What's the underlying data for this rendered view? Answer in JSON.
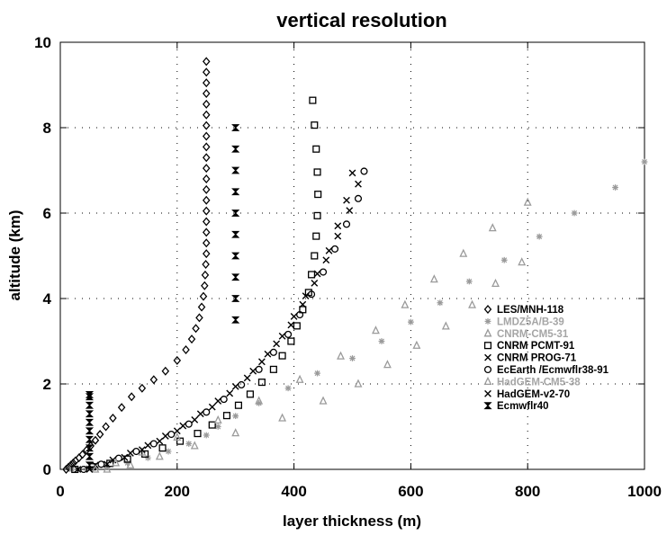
{
  "chart_data": {
    "type": "scatter",
    "title": "vertical resolution",
    "xlabel": "layer thickness (m)",
    "ylabel": "altitude (km)",
    "xlim": [
      0,
      1000
    ],
    "ylim": [
      0,
      10
    ],
    "x_ticks": [
      "0",
      "200",
      "400",
      "600",
      "800",
      "1000"
    ],
    "y_ticks": [
      "0",
      "2",
      "4",
      "6",
      "8",
      "10"
    ],
    "legend_position": "center-right",
    "series": [
      {
        "name": "LES/MNH-118",
        "marker": "diamond",
        "color": "#000000",
        "x": [
          10,
          14,
          18,
          22,
          26,
          32,
          38,
          45,
          52,
          60,
          68,
          78,
          90,
          105,
          122,
          140,
          160,
          180,
          200,
          215,
          225,
          232,
          238,
          242,
          245,
          247,
          248,
          249,
          250,
          250,
          250,
          250,
          250,
          250,
          250,
          250,
          250,
          250,
          250,
          250,
          250,
          250,
          250,
          250,
          250,
          250,
          250
        ],
        "y": [
          0.0,
          0.05,
          0.1,
          0.15,
          0.2,
          0.27,
          0.35,
          0.45,
          0.55,
          0.68,
          0.82,
          1.0,
          1.2,
          1.45,
          1.7,
          1.9,
          2.1,
          2.3,
          2.55,
          2.8,
          3.05,
          3.3,
          3.55,
          3.8,
          4.05,
          4.3,
          4.55,
          4.8,
          5.05,
          5.3,
          5.55,
          5.8,
          6.05,
          6.3,
          6.55,
          6.8,
          7.05,
          7.3,
          7.55,
          7.8,
          8.05,
          8.3,
          8.55,
          8.8,
          9.05,
          9.3,
          9.55
        ]
      },
      {
        "name": "LMDZ5A/B-39",
        "marker": "asterisk",
        "color": "#9a9a9a",
        "x": [
          20,
          45,
          80,
          115,
          150,
          185,
          220,
          250,
          270,
          300,
          340,
          390,
          440,
          500,
          550,
          600,
          650,
          700,
          760,
          820,
          880,
          950,
          1000
        ],
        "y": [
          0.0,
          0.02,
          0.07,
          0.15,
          0.27,
          0.42,
          0.6,
          0.8,
          1.0,
          1.25,
          1.55,
          1.9,
          2.25,
          2.6,
          3.0,
          3.45,
          3.9,
          4.4,
          4.9,
          5.45,
          6.0,
          6.6,
          7.2
        ]
      },
      {
        "name": "CNRM-CM5-31",
        "marker": "triangle",
        "color": "#9a9a9a",
        "x": [
          80,
          120,
          170,
          230,
          300,
          380,
          450,
          510,
          560,
          610,
          660,
          705,
          745,
          790
        ],
        "y": [
          0.0,
          0.1,
          0.3,
          0.55,
          0.85,
          1.2,
          1.6,
          2.0,
          2.45,
          2.9,
          3.35,
          3.85,
          4.35,
          4.85
        ]
      },
      {
        "name": "CNRM PCMT-91",
        "marker": "square",
        "color": "#000000",
        "x": [
          25,
          55,
          85,
          115,
          145,
          175,
          205,
          235,
          260,
          285,
          305,
          325,
          345,
          365,
          380,
          395,
          405,
          415,
          425,
          430,
          435,
          438,
          440,
          441,
          440,
          438,
          435,
          432
        ],
        "y": [
          0.0,
          0.06,
          0.14,
          0.24,
          0.36,
          0.5,
          0.66,
          0.84,
          1.04,
          1.26,
          1.5,
          1.76,
          2.04,
          2.34,
          2.66,
          3.0,
          3.36,
          3.74,
          4.14,
          4.56,
          5.0,
          5.46,
          5.94,
          6.44,
          6.96,
          7.5,
          8.06,
          8.64
        ]
      },
      {
        "name": "CNRM PROG-71",
        "marker": "x",
        "color": "#000000",
        "x": [
          30,
          60,
          90,
          120,
          150,
          180,
          210,
          240,
          270,
          300,
          330,
          355,
          380,
          400,
          420,
          440,
          460,
          475,
          490,
          500
        ],
        "y": [
          0.0,
          0.1,
          0.22,
          0.38,
          0.56,
          0.78,
          1.02,
          1.3,
          1.6,
          1.94,
          2.3,
          2.7,
          3.12,
          3.58,
          4.06,
          4.58,
          5.12,
          5.7,
          6.3,
          6.94
        ]
      },
      {
        "name": "EcEarth /Ecmwflr38-91",
        "marker": "circle",
        "color": "#000000",
        "x": [
          40,
          70,
          100,
          130,
          160,
          190,
          220,
          250,
          280,
          310,
          340,
          365,
          390,
          410,
          430,
          450,
          470,
          490,
          510,
          520
        ],
        "y": [
          0.0,
          0.12,
          0.26,
          0.42,
          0.6,
          0.82,
          1.06,
          1.34,
          1.64,
          1.98,
          2.34,
          2.74,
          3.16,
          3.62,
          4.1,
          4.62,
          5.16,
          5.74,
          6.34,
          6.98
        ]
      },
      {
        "name": "HadGEM-CM5-38",
        "marker": "triangle",
        "color": "#9a9a9a",
        "x": [
          60,
          95,
          140,
          200,
          270,
          340,
          410,
          480,
          540,
          590,
          640,
          690,
          740,
          800
        ],
        "y": [
          0.0,
          0.15,
          0.4,
          0.75,
          1.15,
          1.6,
          2.1,
          2.65,
          3.25,
          3.85,
          4.45,
          5.05,
          5.65,
          6.25
        ]
      },
      {
        "name": "HadGEM-v2-70",
        "marker": "x",
        "color": "#000000",
        "x": [
          50,
          80,
          110,
          140,
          170,
          200,
          230,
          260,
          290,
          320,
          345,
          370,
          395,
          415,
          435,
          455,
          475,
          495,
          510
        ],
        "y": [
          0.0,
          0.12,
          0.28,
          0.46,
          0.66,
          0.9,
          1.16,
          1.46,
          1.78,
          2.14,
          2.52,
          2.94,
          3.38,
          3.86,
          4.36,
          4.9,
          5.46,
          6.06,
          6.68
        ]
      },
      {
        "name": "Ecmwflr40",
        "marker": "hourglass",
        "color": "#000000",
        "x": [
          50,
          50,
          50,
          50,
          50,
          50,
          50,
          50,
          50,
          50,
          300,
          300,
          300,
          300,
          300,
          300,
          300,
          300,
          300,
          300
        ],
        "y": [
          0.1,
          0.3,
          0.5,
          0.7,
          0.9,
          1.1,
          1.3,
          1.5,
          1.7,
          1.75,
          3.5,
          4.0,
          4.5,
          5.0,
          5.5,
          6.0,
          6.5,
          7.0,
          7.5,
          8.0
        ]
      }
    ]
  }
}
